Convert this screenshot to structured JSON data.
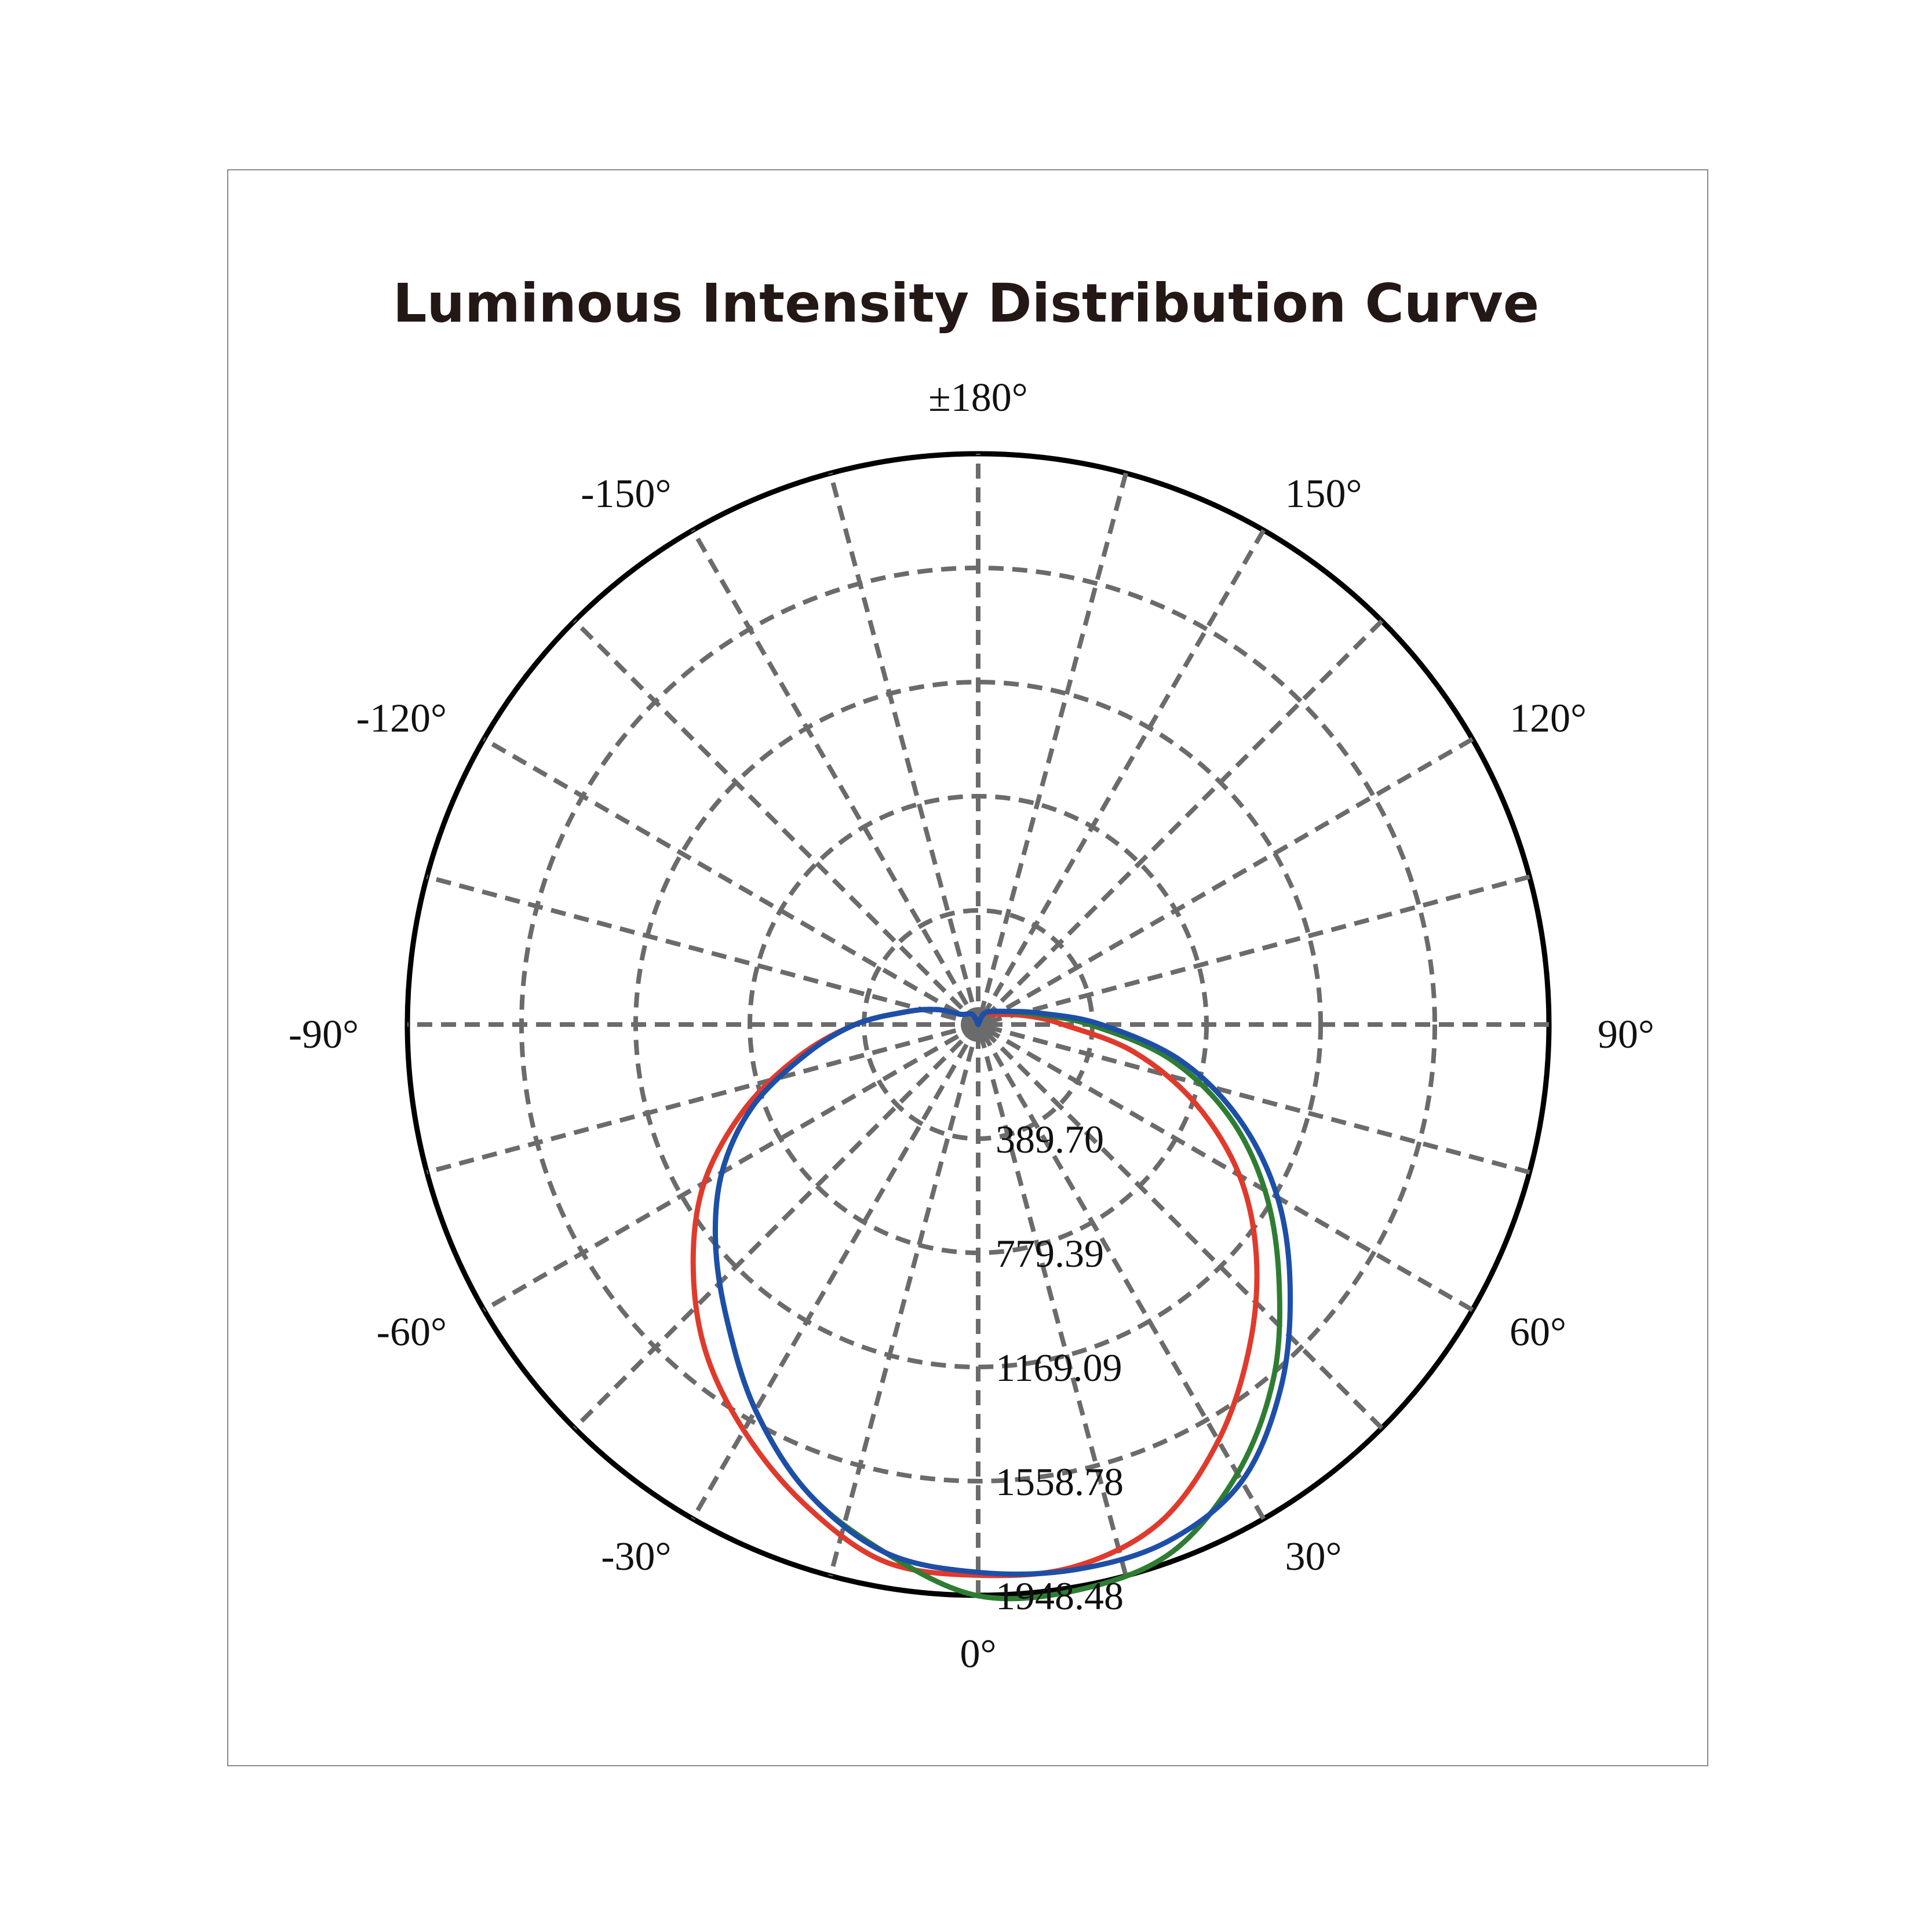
{
  "title": "Luminous Intensity Distribution Curve",
  "chart_data": {
    "type": "polar",
    "title": "Luminous Intensity Distribution Curve",
    "angular_axis": {
      "zero_direction": "bottom",
      "tick_labels": [
        {
          "angle": 0,
          "label": "0°"
        },
        {
          "angle": 30,
          "label": "30°"
        },
        {
          "angle": 60,
          "label": "60°"
        },
        {
          "angle": 90,
          "label": "90°"
        },
        {
          "angle": 120,
          "label": "120°"
        },
        {
          "angle": 150,
          "label": "150°"
        },
        {
          "angle": 180,
          "label": "±180°"
        },
        {
          "angle": -150,
          "label": "-150°"
        },
        {
          "angle": -120,
          "label": "-120°"
        },
        {
          "angle": -90,
          "label": "-90°"
        },
        {
          "angle": -60,
          "label": "-60°"
        },
        {
          "angle": -30,
          "label": "-30°"
        }
      ],
      "spoke_step_deg": 15
    },
    "radial_axis": {
      "range": [
        0,
        1948.48
      ],
      "ticks": [
        389.7,
        779.39,
        1169.09,
        1558.78,
        1948.48
      ],
      "tick_labels": [
        "389.70",
        "779.39",
        "1169.09",
        "1558.78",
        "1948.48"
      ]
    },
    "grid": true,
    "series": [
      {
        "color": "#e03a2c",
        "points": [
          [
            -180,
            0
          ],
          [
            -150,
            40
          ],
          [
            -120,
            70
          ],
          [
            -110,
            150
          ],
          [
            -100,
            250
          ],
          [
            -90,
            420
          ],
          [
            -80,
            620
          ],
          [
            -70,
            850
          ],
          [
            -60,
            1080
          ],
          [
            -50,
            1270
          ],
          [
            -40,
            1450
          ],
          [
            -30,
            1600
          ],
          [
            -20,
            1740
          ],
          [
            -10,
            1860
          ],
          [
            0,
            1880
          ],
          [
            10,
            1880
          ],
          [
            20,
            1810
          ],
          [
            30,
            1640
          ],
          [
            40,
            1440
          ],
          [
            50,
            1240
          ],
          [
            60,
            1030
          ],
          [
            70,
            790
          ],
          [
            80,
            540
          ],
          [
            90,
            290
          ],
          [
            100,
            170
          ],
          [
            120,
            70
          ],
          [
            150,
            40
          ],
          [
            180,
            0
          ]
        ]
      },
      {
        "color": "#2e7d32",
        "points": [
          [
            -180,
            0
          ],
          [
            -150,
            40
          ],
          [
            -120,
            70
          ],
          [
            -110,
            150
          ],
          [
            -100,
            250
          ],
          [
            -90,
            420
          ],
          [
            -80,
            600
          ],
          [
            -70,
            820
          ],
          [
            -60,
            1010
          ],
          [
            -50,
            1170
          ],
          [
            -40,
            1330
          ],
          [
            -30,
            1520
          ],
          [
            -20,
            1700
          ],
          [
            -10,
            1830
          ],
          [
            0,
            1950
          ],
          [
            10,
            1960
          ],
          [
            20,
            1920
          ],
          [
            30,
            1770
          ],
          [
            40,
            1570
          ],
          [
            50,
            1340
          ],
          [
            60,
            1130
          ],
          [
            70,
            910
          ],
          [
            80,
            660
          ],
          [
            90,
            380
          ],
          [
            100,
            200
          ],
          [
            120,
            90
          ],
          [
            150,
            45
          ],
          [
            180,
            0
          ]
        ]
      },
      {
        "color": "#1d4fa8",
        "points": [
          [
            -180,
            0
          ],
          [
            -150,
            40
          ],
          [
            -120,
            70
          ],
          [
            -110,
            150
          ],
          [
            -100,
            250
          ],
          [
            -90,
            420
          ],
          [
            -80,
            600
          ],
          [
            -70,
            820
          ],
          [
            -60,
            1010
          ],
          [
            -50,
            1170
          ],
          [
            -40,
            1330
          ],
          [
            -30,
            1520
          ],
          [
            -20,
            1700
          ],
          [
            -10,
            1830
          ],
          [
            0,
            1870
          ],
          [
            10,
            1890
          ],
          [
            20,
            1880
          ],
          [
            30,
            1800
          ],
          [
            40,
            1610
          ],
          [
            50,
            1390
          ],
          [
            60,
            1180
          ],
          [
            70,
            950
          ],
          [
            80,
            700
          ],
          [
            90,
            420
          ],
          [
            100,
            220
          ],
          [
            120,
            90
          ],
          [
            150,
            45
          ],
          [
            180,
            0
          ]
        ]
      }
    ]
  }
}
